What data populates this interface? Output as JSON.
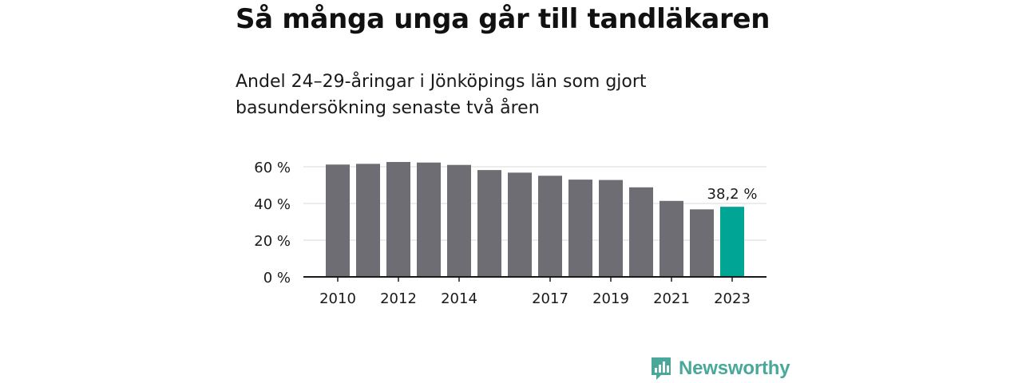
{
  "title": "Så många unga går till tandläkaren",
  "subtitle": "Andel 24–29-åringar i Jönköpings län som gjort basundersökning senaste två åren",
  "brand": {
    "name": "Newsworthy",
    "icon": "newsworthy-logo-icon",
    "color": "#49a89a"
  },
  "chart_data": {
    "type": "bar",
    "categories": [
      "2010",
      "2011",
      "2012",
      "2013",
      "2014",
      "2015",
      "2016",
      "2017",
      "2018",
      "2019",
      "2020",
      "2021",
      "2022",
      "2023"
    ],
    "values": [
      61.2,
      61.6,
      62.6,
      62.3,
      61.0,
      58.2,
      56.8,
      55.1,
      53.0,
      52.8,
      48.8,
      41.4,
      36.8,
      38.2
    ],
    "x_tick_labels": [
      "2010",
      "",
      "2012",
      "",
      "2014",
      "",
      "",
      "2017",
      "",
      "2019",
      "",
      "2021",
      "",
      "2023"
    ],
    "y_ticks": [
      0,
      20,
      40,
      60
    ],
    "y_tick_labels": [
      "0 %",
      "20 %",
      "40 %",
      "60 %"
    ],
    "ylim": [
      0,
      60
    ],
    "highlight_index": 13,
    "highlight_label": "38,2 %",
    "colors": {
      "bar": "#6e6d73",
      "highlight": "#00a596",
      "grid": "#d9d9d9",
      "axis": "#1a1a1a"
    },
    "grid": true,
    "xlabel": "",
    "ylabel": ""
  }
}
